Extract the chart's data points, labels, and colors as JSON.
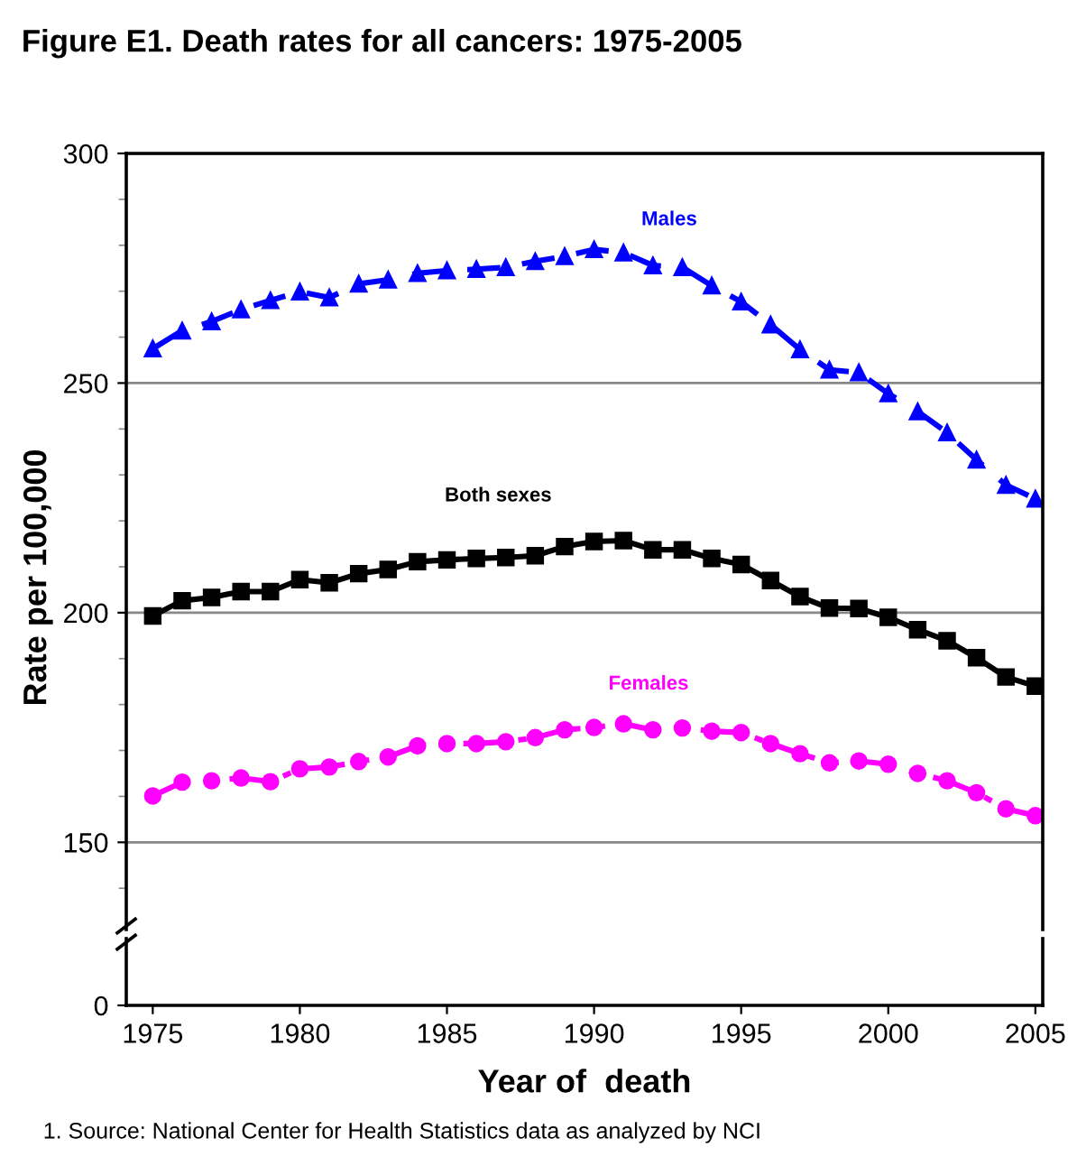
{
  "chart_data": {
    "type": "line",
    "title": "Figure E1. Death rates for all cancers: 1975-2005",
    "ylabel": "Rate per 100,000",
    "xlabel": "Year of  death",
    "x": [
      1975,
      1976,
      1977,
      1978,
      1979,
      1980,
      1981,
      1982,
      1983,
      1984,
      1985,
      1986,
      1987,
      1988,
      1989,
      1990,
      1991,
      1992,
      1993,
      1994,
      1995,
      1996,
      1997,
      1998,
      1999,
      2000,
      2001,
      2002,
      2003,
      2004,
      2005
    ],
    "series": [
      {
        "name": "Males",
        "color": "#0000ff",
        "marker": "triangle",
        "line_style": "dashed",
        "values": [
          257.5,
          261.4,
          263.4,
          266,
          268,
          269.9,
          268.6,
          271.6,
          272.5,
          273.9,
          274.5,
          274.8,
          275.2,
          276.5,
          277.6,
          279.1,
          278.4,
          275.6,
          275.2,
          271.2,
          267.7,
          262.7,
          257.3,
          252.9,
          252.3,
          247.7,
          243.8,
          239.2,
          233.3,
          227.8,
          224.8
        ]
      },
      {
        "name": "Both sexes",
        "color": "#000000",
        "marker": "square",
        "line_style": "solid",
        "values": [
          199.3,
          202.6,
          203.3,
          204.6,
          204.6,
          207.2,
          206.5,
          208.5,
          209.4,
          211.1,
          211.5,
          211.8,
          212,
          212.4,
          214.4,
          215.5,
          215.7,
          213.7,
          213.7,
          211.8,
          210.5,
          207,
          203.5,
          201,
          200.9,
          199,
          196.3,
          193.9,
          190.2,
          186,
          184
        ]
      },
      {
        "name": "Females",
        "color": "#ff00ff",
        "marker": "circle",
        "line_style": "dashdot",
        "values": [
          160.1,
          163.1,
          163.4,
          164,
          163.2,
          166,
          166.4,
          167.6,
          168.6,
          171,
          171.5,
          171.5,
          171.9,
          172.8,
          174.5,
          175,
          175.8,
          174.5,
          174.9,
          174.2,
          173.9,
          171.5,
          169.3,
          167.3,
          167.7,
          167,
          165,
          163.4,
          160.8,
          157.3,
          155.8
        ]
      }
    ],
    "xlim": [
      1974.1,
      2005.25
    ],
    "xticks": [
      1975,
      1980,
      1985,
      1990,
      1995,
      2000,
      2005
    ],
    "ylim": [
      131,
      300
    ],
    "yticks": [
      150,
      200,
      250,
      300
    ],
    "grid": "y",
    "annotations": [
      "1. Source: National Center for Health Statistics data as analyzed by NCI",
      "0"
    ]
  }
}
